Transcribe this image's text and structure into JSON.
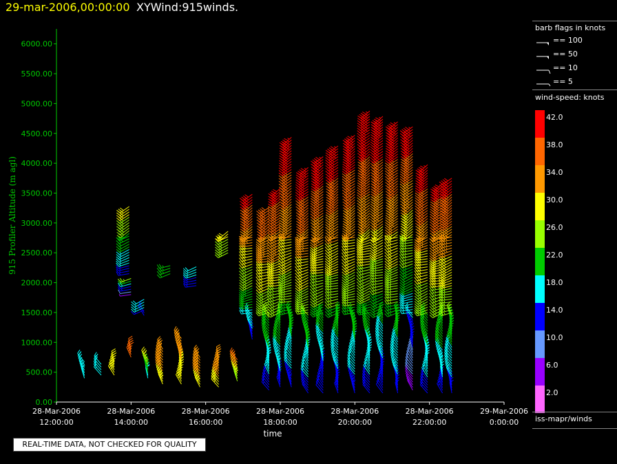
{
  "header": {
    "date_title": "29-mar-2006,00:00:00",
    "product_title": "XYWind:915winds."
  },
  "legend": {
    "flags_title": "barb flags in knots",
    "flags": [
      "== 100",
      "== 50",
      "== 10",
      "== 5"
    ],
    "speed_title": "wind-speed: knots",
    "colorbar": [
      {
        "label": "42.0",
        "color": "#ff0000"
      },
      {
        "label": "38.0",
        "color": "#ff6600"
      },
      {
        "label": "34.0",
        "color": "#ff9900"
      },
      {
        "label": "30.0",
        "color": "#ffff00"
      },
      {
        "label": "26.0",
        "color": "#99ff00"
      },
      {
        "label": "22.0",
        "color": "#00cc00"
      },
      {
        "label": "18.0",
        "color": "#00ffff"
      },
      {
        "label": "14.0",
        "color": "#0000ff"
      },
      {
        "label": "10.0",
        "color": "#6699ff"
      },
      {
        "label": "6.0",
        "color": "#9900ff"
      },
      {
        "label": "2.0",
        "color": "#ff66ff"
      }
    ],
    "source": "iss-mapr/winds"
  },
  "quality_note": "REAL-TIME DATA, NOT CHECKED FOR QUALITY",
  "chart_data": {
    "type": "scatter",
    "marker": "wind-barb",
    "xlabel": "time",
    "ylabel": "915 Profiler Altitude (m agl)",
    "xlim": [
      12,
      24
    ],
    "ylim": [
      0,
      6250
    ],
    "x_ticks": [
      {
        "value": 12,
        "line1": "28-Mar-2006",
        "line2": "12:00:00"
      },
      {
        "value": 14,
        "line1": "28-Mar-2006",
        "line2": "14:00:00"
      },
      {
        "value": 16,
        "line1": "28-Mar-2006",
        "line2": "16:00:00"
      },
      {
        "value": 18,
        "line1": "28-Mar-2006",
        "line2": "18:00:00"
      },
      {
        "value": 20,
        "line1": "28-Mar-2006",
        "line2": "20:00:00"
      },
      {
        "value": 22,
        "line1": "28-Mar-2006",
        "line2": "22:00:00"
      },
      {
        "value": 24,
        "line1": "29-Mar-2006",
        "line2": "0:00:00"
      }
    ],
    "y_ticks": [
      0,
      500,
      1000,
      1500,
      2000,
      2500,
      3000,
      3500,
      4000,
      4500,
      5000,
      5500,
      6000
    ],
    "y_tick_labels": [
      "0.00",
      "500.00",
      "1000.00",
      "1500.00",
      "2000.00",
      "2500.00",
      "3000.00",
      "3500.00",
      "4000.00",
      "4500.00",
      "5000.00",
      "5500.00",
      "6000.00"
    ],
    "profiles": [
      {
        "time": 12.75,
        "hmin": 400,
        "hmax": 700,
        "speed_low": 16,
        "speed_high": 18
      },
      {
        "time": 13.2,
        "hmin": 450,
        "hmax": 650,
        "speed_low": 17,
        "speed_high": 18
      },
      {
        "time": 13.55,
        "hmin": 450,
        "hmax": 700,
        "speed_low": 28,
        "speed_high": 30
      },
      {
        "time": 13.95,
        "hmin": 2150,
        "hmax": 3300,
        "speed_low": 14,
        "speed_high": 31
      },
      {
        "time": 14.0,
        "hmin": 1800,
        "hmax": 2100,
        "speed_low": 6,
        "speed_high": 28
      },
      {
        "time": 14.0,
        "hmin": 750,
        "hmax": 900,
        "speed_low": 36,
        "speed_high": 38
      },
      {
        "time": 14.35,
        "hmin": 1450,
        "hmax": 1750,
        "speed_low": 15,
        "speed_high": 18
      },
      {
        "time": 14.45,
        "hmin": 400,
        "hmax": 750,
        "speed_low": 17,
        "speed_high": 30
      },
      {
        "time": 14.85,
        "hmin": 300,
        "hmax": 900,
        "speed_low": 30,
        "speed_high": 36
      },
      {
        "time": 15.05,
        "hmin": 2150,
        "hmax": 2300,
        "speed_low": 22,
        "speed_high": 24
      },
      {
        "time": 15.35,
        "hmin": 300,
        "hmax": 1100,
        "speed_low": 28,
        "speed_high": 36
      },
      {
        "time": 15.75,
        "hmin": 1950,
        "hmax": 2300,
        "speed_low": 14,
        "speed_high": 18
      },
      {
        "time": 15.85,
        "hmin": 250,
        "hmax": 750,
        "speed_low": 30,
        "speed_high": 36
      },
      {
        "time": 16.35,
        "hmin": 250,
        "hmax": 750,
        "speed_low": 30,
        "speed_high": 36
      },
      {
        "time": 16.6,
        "hmin": 2500,
        "hmax": 2900,
        "speed_low": 26,
        "speed_high": 29
      },
      {
        "time": 16.85,
        "hmin": 350,
        "hmax": 750,
        "speed_low": 25,
        "speed_high": 38
      },
      {
        "time": 17.25,
        "hmin": 1050,
        "hmax": 3500,
        "speed_low": 14,
        "speed_high": 42
      },
      {
        "time": 17.7,
        "hmin": 200,
        "hmax": 3300,
        "speed_low": 14,
        "speed_high": 40
      },
      {
        "time": 18.0,
        "hmin": 250,
        "hmax": 3600,
        "speed_low": 14,
        "speed_high": 42
      },
      {
        "time": 18.3,
        "hmin": 250,
        "hmax": 4450,
        "speed_low": 14,
        "speed_high": 44
      },
      {
        "time": 18.75,
        "hmin": 150,
        "hmax": 3950,
        "speed_low": 14,
        "speed_high": 44
      },
      {
        "time": 19.15,
        "hmin": 150,
        "hmax": 4150,
        "speed_low": 12,
        "speed_high": 44
      },
      {
        "time": 19.55,
        "hmin": 150,
        "hmax": 4300,
        "speed_low": 13,
        "speed_high": 44
      },
      {
        "time": 20.0,
        "hmin": 150,
        "hmax": 4500,
        "speed_low": 14,
        "speed_high": 44
      },
      {
        "time": 20.4,
        "hmin": 150,
        "hmax": 4900,
        "speed_low": 14,
        "speed_high": 45
      },
      {
        "time": 20.75,
        "hmin": 150,
        "hmax": 4800,
        "speed_low": 12,
        "speed_high": 45
      },
      {
        "time": 21.15,
        "hmin": 150,
        "hmax": 4700,
        "speed_low": 14,
        "speed_high": 44
      },
      {
        "time": 21.55,
        "hmin": 200,
        "hmax": 4650,
        "speed_low": 6,
        "speed_high": 44
      },
      {
        "time": 21.95,
        "hmin": 150,
        "hmax": 4000,
        "speed_low": 14,
        "speed_high": 43
      },
      {
        "time": 22.35,
        "hmin": 150,
        "hmax": 3700,
        "speed_low": 14,
        "speed_high": 42
      },
      {
        "time": 22.6,
        "hmin": 150,
        "hmax": 3750,
        "speed_low": 14,
        "speed_high": 42
      }
    ]
  }
}
